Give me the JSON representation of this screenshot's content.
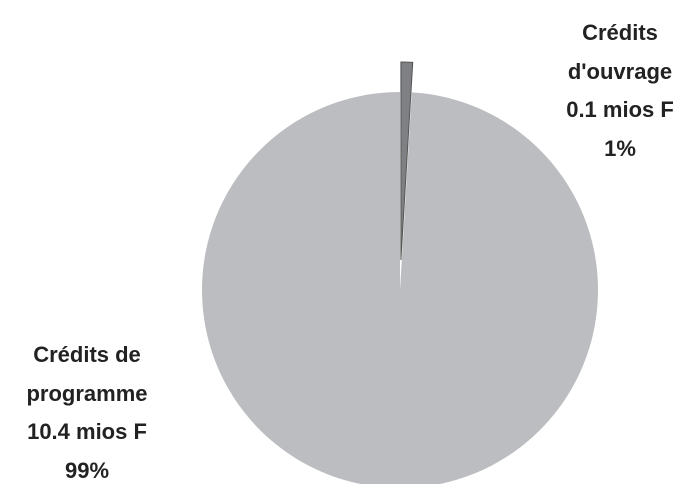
{
  "chart_data": {
    "type": "pie",
    "categories": [
      "Crédits d'ouvrage",
      "Crédits de programme"
    ],
    "values": [
      0.1,
      10.4
    ],
    "value_labels": [
      "0.1 mios F",
      "10.4 mios F"
    ],
    "percentages": [
      1,
      99
    ],
    "percentage_labels": [
      "1%",
      "99%"
    ],
    "colors": [
      "#7f8083",
      "#bcbdc0"
    ]
  }
}
